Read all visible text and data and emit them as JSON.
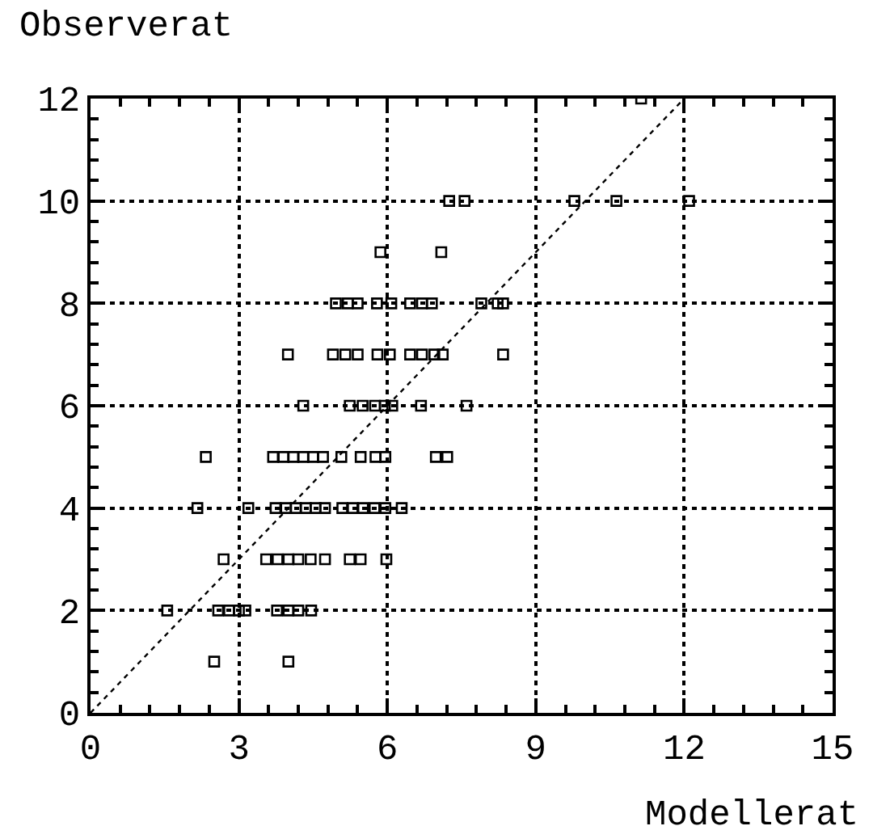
{
  "chart_data": {
    "type": "scatter",
    "xlabel": "Modellerat",
    "ylabel": "Observerat",
    "xlim": [
      0,
      15
    ],
    "xticks": [
      0,
      3,
      6,
      9,
      12,
      15
    ],
    "ylim": [
      0,
      12
    ],
    "yticks": [
      0,
      2,
      4,
      6,
      8,
      10,
      12
    ],
    "grid": true,
    "series": [
      {
        "marker": "square",
        "color": "#000000",
        "x": [
          11.13,
          7.25,
          7.56,
          9.78,
          10.63,
          12.1,
          5.86,
          7.09,
          4.96,
          5.2,
          5.4,
          5.79,
          6.08,
          6.46,
          6.7,
          6.9,
          7.9,
          8.23,
          8.34,
          3.99,
          4.9,
          5.15,
          5.4,
          5.8,
          6.05,
          6.46,
          6.7,
          6.95,
          7.12,
          8.34,
          4.3,
          5.24,
          5.5,
          5.75,
          5.95,
          6.1,
          6.68,
          7.6,
          2.33,
          3.69,
          3.9,
          4.1,
          4.3,
          4.5,
          4.7,
          5.07,
          5.46,
          5.76,
          5.96,
          6.98,
          7.21,
          2.16,
          3.19,
          3.74,
          3.95,
          4.15,
          4.35,
          4.55,
          4.74,
          5.09,
          5.3,
          5.51,
          5.74,
          5.96,
          6.29,
          2.69,
          3.55,
          3.78,
          4.0,
          4.2,
          4.45,
          4.74,
          5.24,
          5.46,
          5.98,
          1.55,
          2.58,
          2.8,
          3.0,
          3.13,
          3.77,
          4.0,
          4.2,
          4.46,
          2.5,
          4.0
        ],
        "values": [
          12,
          10,
          10,
          10,
          10,
          10,
          9,
          9,
          8,
          8,
          8,
          8,
          8,
          8,
          8,
          8,
          8,
          8,
          8,
          7,
          7,
          7,
          7,
          7,
          7,
          7,
          7,
          7,
          7,
          7,
          6,
          6,
          6,
          6,
          6,
          6,
          6,
          6,
          5,
          5,
          5,
          5,
          5,
          5,
          5,
          5,
          5,
          5,
          5,
          5,
          5,
          4,
          4,
          4,
          4,
          4,
          4,
          4,
          4,
          4,
          4,
          4,
          4,
          4,
          4,
          3,
          3,
          3,
          3,
          3,
          3,
          3,
          3,
          3,
          3,
          2,
          2,
          2,
          2,
          2,
          2,
          2,
          2,
          2,
          1,
          1
        ]
      },
      {
        "type": "line",
        "marker": "none",
        "line_style": "dotted",
        "color": "#000000",
        "x": [
          0,
          12
        ],
        "values": [
          0,
          12
        ]
      }
    ]
  }
}
